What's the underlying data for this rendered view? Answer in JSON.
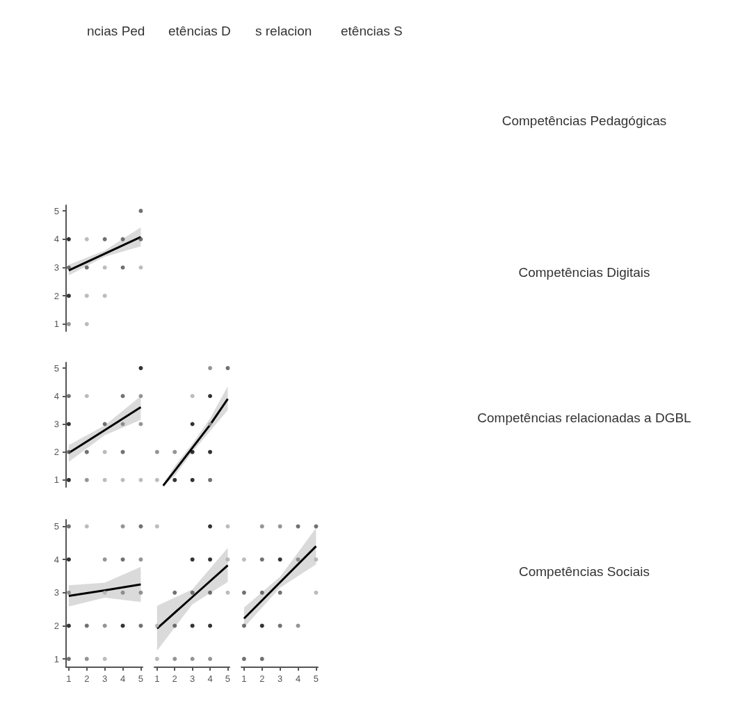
{
  "chart_data": [
    {
      "type": "other",
      "annotations": [
        "ncias Ped",
        "etências D",
        "s relacion",
        "etências S",
        "Competências Pedagógicas",
        "Competências Digitais",
        "Competências relacionadas a DGBL",
        "Competências Sociais"
      ]
    },
    {
      "type": "scatter",
      "ylim": [
        0.75,
        5.2
      ],
      "xticks": [
        1,
        2,
        3,
        4,
        5
      ],
      "yticks": [
        1,
        2,
        3,
        4,
        5
      ],
      "tick_labels": "y",
      "grid": false,
      "marker": "circle",
      "series": [
        {
          "x": [
            1,
            1,
            1,
            1,
            2,
            2,
            2,
            2,
            3,
            3,
            3,
            4,
            4,
            5,
            5,
            5
          ],
          "values": [
            4,
            3,
            2,
            1,
            4,
            3,
            2,
            1,
            4,
            3,
            2,
            4,
            3,
            5,
            4,
            3
          ],
          "colors": [
            "#000000",
            "#4d4d4d",
            "#000000",
            "#7a7a7a",
            "#ababab",
            "#4d4d4d",
            "#ababab",
            "#ababab",
            "#4d4d4d",
            "#ababab",
            "#ababab",
            "#4d4d4d",
            "#4d4d4d",
            "#4d4d4d",
            "#4d4d4d",
            "#ababab"
          ]
        },
        {
          "type": "line",
          "marker": "none",
          "color": "#000000",
          "x": [
            1,
            3,
            5
          ],
          "values": [
            2.9,
            3.49,
            4.08
          ],
          "lower": [
            2.72,
            3.38,
            3.75
          ],
          "upper": [
            3.1,
            3.6,
            4.42
          ]
        }
      ]
    },
    {
      "type": "scatter",
      "ylim": [
        0.75,
        5.2
      ],
      "xticks": [
        1,
        2,
        3,
        4,
        5
      ],
      "yticks": [
        1,
        2,
        3,
        4,
        5
      ],
      "tick_labels": "y",
      "grid": false,
      "marker": "circle",
      "series": [
        {
          "x": [
            1,
            1,
            1,
            1,
            2,
            2,
            2,
            3,
            3,
            3,
            4,
            4,
            4,
            4,
            5,
            5,
            5,
            5
          ],
          "values": [
            4,
            3,
            2,
            1,
            4,
            2,
            1,
            3,
            2,
            1,
            4,
            3,
            2,
            1,
            5,
            4,
            3,
            1
          ],
          "colors": [
            "#4d4d4d",
            "#000000",
            "#4d4d4d",
            "#000000",
            "#ababab",
            "#4d4d4d",
            "#7a7a7a",
            "#4d4d4d",
            "#ababab",
            "#ababab",
            "#4d4d4d",
            "#7a7a7a",
            "#4d4d4d",
            "#ababab",
            "#000000",
            "#7a7a7a",
            "#7a7a7a",
            "#ababab"
          ]
        },
        {
          "type": "line",
          "marker": "none",
          "color": "#000000",
          "x": [
            1,
            3,
            5
          ],
          "values": [
            1.97,
            2.78,
            3.6
          ],
          "lower": [
            1.65,
            2.6,
            3.15
          ],
          "upper": [
            2.25,
            2.95,
            4.0
          ]
        }
      ]
    },
    {
      "type": "scatter",
      "xticks": [
        1,
        2,
        3,
        4,
        5
      ],
      "yticks": [
        1,
        2,
        3,
        4,
        5
      ],
      "tick_labels": false,
      "grid": false,
      "marker": "circle",
      "series": [
        {
          "x": [
            1,
            1,
            2,
            2,
            3,
            3,
            3,
            3,
            4,
            4,
            4,
            4,
            4,
            5
          ],
          "values": [
            2,
            1,
            2,
            1,
            4,
            3,
            2,
            1,
            5,
            4,
            3,
            2,
            1,
            5
          ],
          "colors": [
            "#7a7a7a",
            "#ababab",
            "#7a7a7a",
            "#000000",
            "#ababab",
            "#000000",
            "#000000",
            "#000000",
            "#7a7a7a",
            "#000000",
            "#ababab",
            "#000000",
            "#4d4d4d",
            "#4d4d4d"
          ]
        },
        {
          "type": "line",
          "marker": "none",
          "color": "#000000",
          "x": [
            1.35,
            2,
            3,
            4,
            5
          ],
          "values": [
            0.8,
            1.33,
            2.15,
            2.97,
            3.9
          ],
          "lower": [
            0.78,
            1.15,
            2.0,
            2.75,
            3.5
          ],
          "upper": [
            0.85,
            1.5,
            2.3,
            3.2,
            4.35
          ]
        }
      ]
    },
    {
      "type": "scatter",
      "xlim": [
        0.85,
        5.1
      ],
      "ylim": [
        0.75,
        5.2
      ],
      "xticks": [
        1,
        2,
        3,
        4,
        5
      ],
      "yticks": [
        1,
        2,
        3,
        4,
        5
      ],
      "grid": false,
      "marker": "circle",
      "series": [
        {
          "x": [
            1,
            1,
            1,
            1,
            1,
            2,
            2,
            2,
            3,
            3,
            3,
            3,
            4,
            4,
            4,
            4,
            5,
            5,
            5,
            5
          ],
          "values": [
            5,
            4,
            3,
            2,
            1,
            5,
            2,
            1,
            4,
            3,
            2,
            1,
            5,
            4,
            3,
            2,
            5,
            4,
            3,
            2
          ],
          "colors": [
            "#4d4d4d",
            "#000000",
            "#7a7a7a",
            "#000000",
            "#4d4d4d",
            "#ababab",
            "#4d4d4d",
            "#7a7a7a",
            "#7a7a7a",
            "#ababab",
            "#7a7a7a",
            "#ababab",
            "#7a7a7a",
            "#4d4d4d",
            "#7a7a7a",
            "#000000",
            "#4d4d4d",
            "#7a7a7a",
            "#7a7a7a",
            "#4d4d4d"
          ]
        },
        {
          "type": "line",
          "marker": "none",
          "color": "#000000",
          "x": [
            1,
            3,
            5
          ],
          "values": [
            2.9,
            3.07,
            3.25
          ],
          "lower": [
            2.58,
            2.85,
            2.72
          ],
          "upper": [
            3.22,
            3.3,
            3.78
          ]
        }
      ]
    },
    {
      "type": "scatter",
      "xlim": [
        0.85,
        5.1
      ],
      "xticks": [
        1,
        2,
        3,
        4,
        5
      ],
      "yticks": [
        1,
        2,
        3,
        4,
        5
      ],
      "tick_labels": "x",
      "grid": false,
      "marker": "circle",
      "series": [
        {
          "x": [
            1,
            1,
            1,
            2,
            2,
            2,
            3,
            3,
            3,
            3,
            4,
            4,
            4,
            4,
            4,
            5,
            5,
            5
          ],
          "values": [
            5,
            2,
            1,
            3,
            2,
            1,
            4,
            3,
            2,
            1,
            5,
            4,
            3,
            2,
            1,
            5,
            4,
            3
          ],
          "colors": [
            "#ababab",
            "#ababab",
            "#ababab",
            "#4d4d4d",
            "#4d4d4d",
            "#7a7a7a",
            "#000000",
            "#4d4d4d",
            "#000000",
            "#7a7a7a",
            "#000000",
            "#000000",
            "#4d4d4d",
            "#000000",
            "#7a7a7a",
            "#ababab",
            "#ababab",
            "#ababab"
          ]
        },
        {
          "type": "line",
          "marker": "none",
          "color": "#000000",
          "x": [
            1,
            3,
            5
          ],
          "values": [
            1.92,
            2.87,
            3.82
          ],
          "lower": [
            1.25,
            2.65,
            3.32
          ],
          "upper": [
            2.6,
            3.1,
            4.35
          ]
        }
      ]
    },
    {
      "type": "scatter",
      "xlim": [
        0.85,
        5.1
      ],
      "xticks": [
        1,
        2,
        3,
        4,
        5
      ],
      "yticks": [
        1,
        2,
        3,
        4,
        5
      ],
      "tick_labels": "x",
      "grid": false,
      "marker": "circle",
      "series": [
        {
          "x": [
            1,
            1,
            1,
            1,
            2,
            2,
            2,
            2,
            2,
            3,
            3,
            3,
            3,
            4,
            4,
            4,
            5,
            5,
            5
          ],
          "values": [
            4,
            3,
            2,
            1,
            5,
            4,
            3,
            2,
            1,
            5,
            4,
            3,
            2,
            5,
            4,
            2,
            5,
            4,
            3
          ],
          "colors": [
            "#ababab",
            "#4d4d4d",
            "#4d4d4d",
            "#4d4d4d",
            "#7a7a7a",
            "#4d4d4d",
            "#4d4d4d",
            "#000000",
            "#4d4d4d",
            "#7a7a7a",
            "#000000",
            "#4d4d4d",
            "#4d4d4d",
            "#4d4d4d",
            "#7a7a7a",
            "#7a7a7a",
            "#4d4d4d",
            "#ababab",
            "#ababab"
          ]
        },
        {
          "type": "line",
          "marker": "none",
          "color": "#000000",
          "x": [
            1,
            3,
            5
          ],
          "values": [
            2.22,
            3.31,
            4.4
          ],
          "lower": [
            1.95,
            3.15,
            3.85
          ],
          "upper": [
            2.55,
            3.48,
            4.95
          ]
        }
      ]
    }
  ]
}
